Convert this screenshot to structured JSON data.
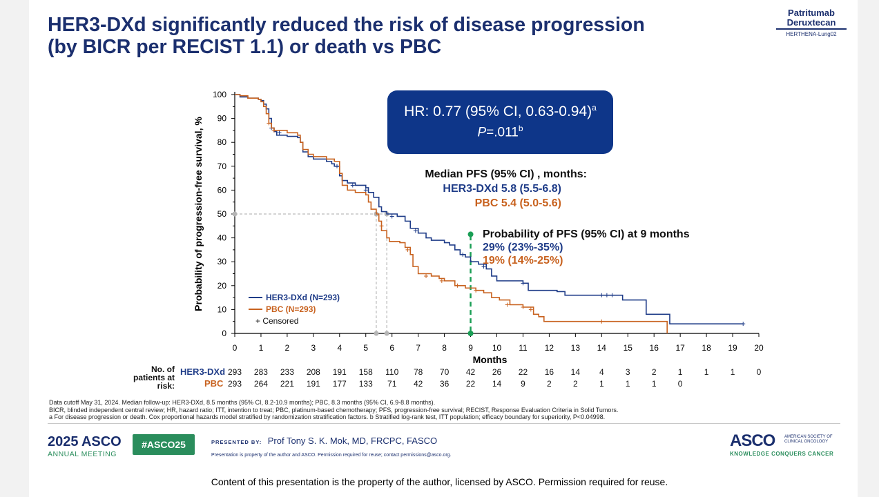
{
  "title": {
    "line1": "HER3-DXd significantly reduced the risk of disease progression",
    "line2": "(by BICR per RECIST 1.1) or death vs PBC"
  },
  "brand": {
    "name1": "Patritumab",
    "name2": "Deruxtecan",
    "trial": "HERTHENA-Lung02"
  },
  "hr_box": {
    "hr_text": "HR: 0.77 (95% CI, 0.63-0.94)",
    "hr_sup": "a",
    "p_label": "P",
    "p_value": "=.011",
    "p_sup": "b"
  },
  "median": {
    "heading": "Median PFS (95% CI) , months:",
    "her3": "HER3-DXd 5.8 (5.5-6.8)",
    "pbc": "PBC 5.4 (5.0-5.6)"
  },
  "probability": {
    "heading": "Probability of PFS (95% CI) at 9 months",
    "her3": "29% (23%-35%)",
    "pbc": "19% (14%-25%)"
  },
  "colors": {
    "her3": "#1f3c88",
    "pbc": "#c8621f",
    "marker": "#1a9e55",
    "box": "#0e3689",
    "title": "#1b2f6e"
  },
  "chart_data": {
    "type": "line",
    "subtype": "kaplan-meier",
    "xlabel": "Months",
    "ylabel": "Probability of progression-free survival, %",
    "xlim": [
      0,
      20
    ],
    "ylim": [
      0,
      100
    ],
    "xticks": [
      0,
      1,
      2,
      3,
      4,
      5,
      6,
      7,
      8,
      9,
      10,
      11,
      12,
      13,
      14,
      15,
      16,
      17,
      18,
      19,
      20
    ],
    "yticks": [
      0,
      10,
      20,
      30,
      40,
      50,
      60,
      70,
      80,
      90,
      100
    ],
    "legend_position": "bottom-left",
    "legend": {
      "her3": "HER3-DXd (N=293)",
      "pbc": "PBC (N=293)",
      "censored": "+ Censored"
    },
    "series": [
      {
        "name": "HER3-DXd (N=293)",
        "key": "her3",
        "points": [
          [
            0,
            100
          ],
          [
            0.1,
            100
          ],
          [
            0.2,
            99
          ],
          [
            0.5,
            98.5
          ],
          [
            0.9,
            98
          ],
          [
            1.0,
            97.5
          ],
          [
            1.1,
            96
          ],
          [
            1.2,
            94
          ],
          [
            1.3,
            90
          ],
          [
            1.4,
            86
          ],
          [
            1.5,
            84.5
          ],
          [
            1.6,
            83
          ],
          [
            2.0,
            82.5
          ],
          [
            2.4,
            82
          ],
          [
            2.5,
            80
          ],
          [
            2.6,
            76
          ],
          [
            2.8,
            74
          ],
          [
            3.0,
            73
          ],
          [
            3.5,
            72
          ],
          [
            3.7,
            71
          ],
          [
            3.8,
            70
          ],
          [
            4.0,
            66
          ],
          [
            4.1,
            64
          ],
          [
            4.3,
            63
          ],
          [
            4.6,
            62
          ],
          [
            5.0,
            61
          ],
          [
            5.1,
            59
          ],
          [
            5.3,
            57
          ],
          [
            5.5,
            53
          ],
          [
            5.6,
            51
          ],
          [
            5.8,
            50
          ],
          [
            6.2,
            49
          ],
          [
            6.5,
            47
          ],
          [
            6.7,
            44
          ],
          [
            7.0,
            42
          ],
          [
            7.3,
            40
          ],
          [
            7.5,
            39
          ],
          [
            8.0,
            38
          ],
          [
            8.2,
            37
          ],
          [
            8.4,
            35
          ],
          [
            8.6,
            33
          ],
          [
            8.8,
            32
          ],
          [
            9.0,
            30
          ],
          [
            9.3,
            29
          ],
          [
            9.6,
            27
          ],
          [
            9.8,
            24
          ],
          [
            10.0,
            22
          ],
          [
            10.8,
            22
          ],
          [
            11.0,
            21
          ],
          [
            11.2,
            18
          ],
          [
            12.3,
            17.5
          ],
          [
            12.6,
            16
          ],
          [
            13.8,
            16
          ],
          [
            14.4,
            16
          ],
          [
            14.8,
            14
          ],
          [
            15.6,
            14
          ],
          [
            15.7,
            8
          ],
          [
            16.4,
            8
          ],
          [
            16.6,
            4
          ],
          [
            19.4,
            4
          ]
        ],
        "censored": [
          [
            1.4,
            86
          ],
          [
            1.7,
            84
          ],
          [
            3.9,
            70
          ],
          [
            4.5,
            62
          ],
          [
            5.0,
            60
          ],
          [
            6.0,
            49
          ],
          [
            6.9,
            43
          ],
          [
            8.7,
            33
          ],
          [
            9.5,
            28
          ],
          [
            11.0,
            21
          ],
          [
            14.0,
            16
          ],
          [
            14.2,
            16
          ],
          [
            14.4,
            16
          ],
          [
            19.4,
            4
          ]
        ]
      },
      {
        "name": "PBC (N=293)",
        "key": "pbc",
        "points": [
          [
            0,
            100
          ],
          [
            0.2,
            99.5
          ],
          [
            0.5,
            98.5
          ],
          [
            0.9,
            98
          ],
          [
            1.0,
            97
          ],
          [
            1.1,
            95
          ],
          [
            1.2,
            92
          ],
          [
            1.3,
            88
          ],
          [
            1.4,
            86
          ],
          [
            1.5,
            85
          ],
          [
            2.0,
            84
          ],
          [
            2.4,
            83
          ],
          [
            2.5,
            80
          ],
          [
            2.6,
            77
          ],
          [
            2.8,
            75
          ],
          [
            3.0,
            74
          ],
          [
            3.5,
            73
          ],
          [
            3.8,
            72
          ],
          [
            4.0,
            67
          ],
          [
            4.1,
            62
          ],
          [
            4.3,
            60
          ],
          [
            4.6,
            59
          ],
          [
            5.0,
            58
          ],
          [
            5.1,
            55
          ],
          [
            5.2,
            52
          ],
          [
            5.4,
            50
          ],
          [
            5.5,
            47
          ],
          [
            5.6,
            43
          ],
          [
            5.8,
            40
          ],
          [
            5.9,
            38.5
          ],
          [
            6.3,
            38
          ],
          [
            6.5,
            36
          ],
          [
            6.7,
            33
          ],
          [
            6.8,
            28
          ],
          [
            7.0,
            25
          ],
          [
            7.5,
            24
          ],
          [
            7.8,
            23
          ],
          [
            8.0,
            22
          ],
          [
            8.4,
            20
          ],
          [
            8.8,
            19
          ],
          [
            9.2,
            18
          ],
          [
            9.5,
            17
          ],
          [
            9.8,
            15
          ],
          [
            10.1,
            14
          ],
          [
            10.5,
            12
          ],
          [
            11.0,
            11
          ],
          [
            11.4,
            8
          ],
          [
            11.6,
            7
          ],
          [
            11.8,
            5
          ],
          [
            12.5,
            5
          ],
          [
            16.4,
            5
          ],
          [
            16.5,
            0
          ]
        ],
        "censored": [
          [
            1.3,
            88
          ],
          [
            1.5,
            85
          ],
          [
            5.6,
            45
          ],
          [
            6.6,
            35
          ],
          [
            7.3,
            24
          ],
          [
            7.9,
            22
          ],
          [
            8.5,
            20
          ],
          [
            9.2,
            18
          ],
          [
            10.4,
            12
          ],
          [
            11.0,
            11
          ],
          [
            11.3,
            10
          ],
          [
            14.0,
            5
          ]
        ]
      }
    ],
    "median_markers": [
      {
        "x": 5.4,
        "y": 50
      },
      {
        "x": 5.8,
        "y": 50
      }
    ],
    "landmark": {
      "x": 9,
      "label": "9 months"
    },
    "risk_table": {
      "title": "No. of patients at risk:",
      "months": [
        0,
        1,
        2,
        3,
        4,
        5,
        6,
        7,
        8,
        9,
        10,
        11,
        12,
        13,
        14,
        15,
        16,
        17,
        18,
        19,
        20
      ],
      "her3_label": "HER3-DXd",
      "pbc_label": "PBC",
      "her3": [
        "293",
        "283",
        "233",
        "208",
        "191",
        "158",
        "110",
        "78",
        "70",
        "42",
        "26",
        "22",
        "16",
        "14",
        "4",
        "3",
        "2",
        "1",
        "1",
        "1",
        "0"
      ],
      "pbc": [
        "293",
        "264",
        "221",
        "191",
        "177",
        "133",
        "71",
        "42",
        "36",
        "22",
        "14",
        "9",
        "2",
        "2",
        "1",
        "1",
        "1",
        "0",
        "",
        "",
        ""
      ]
    }
  },
  "footnotes": [
    "Data cutoff May 31, 2024. Median follow-up: HER3-DXd, 8.5 months (95% CI, 8.2-10.9 months); PBC, 8.3 months (95% CI, 6.9-8.8 months).",
    "BICR, blinded independent central review; HR, hazard ratio; ITT, intention to treat; PBC, platinum-based chemotherapy; PFS, progression-free survival; RECIST, Response Evaluation Criteria in Solid Tumors.",
    "a For disease progression or death. Cox proportional hazards model stratified by randomization stratification factors. b Stratified log-rank test, ITT population; efficacy boundary for superiority, P<0.04998."
  ],
  "footer": {
    "meeting_year": "2025",
    "meeting_brand": "ASCO",
    "meeting_label": "ANNUAL MEETING",
    "hashtag": "#ASCO25",
    "presented_by": "PRESENTED BY:",
    "presenter": "Prof Tony S. K. Mok, MD, FRCPC, FASCO",
    "property_note": "Presentation is property of the author and ASCO. Permission required for reuse; contact permissions@asco.org.",
    "asco_logo": "ASCO",
    "society": "AMERICAN SOCIETY OF CLINICAL ONCOLOGY",
    "tagline": "KNOWLEDGE CONQUERS CANCER"
  },
  "copyright": "Content of this presentation is the property of the author, licensed by ASCO. Permission required for reuse."
}
